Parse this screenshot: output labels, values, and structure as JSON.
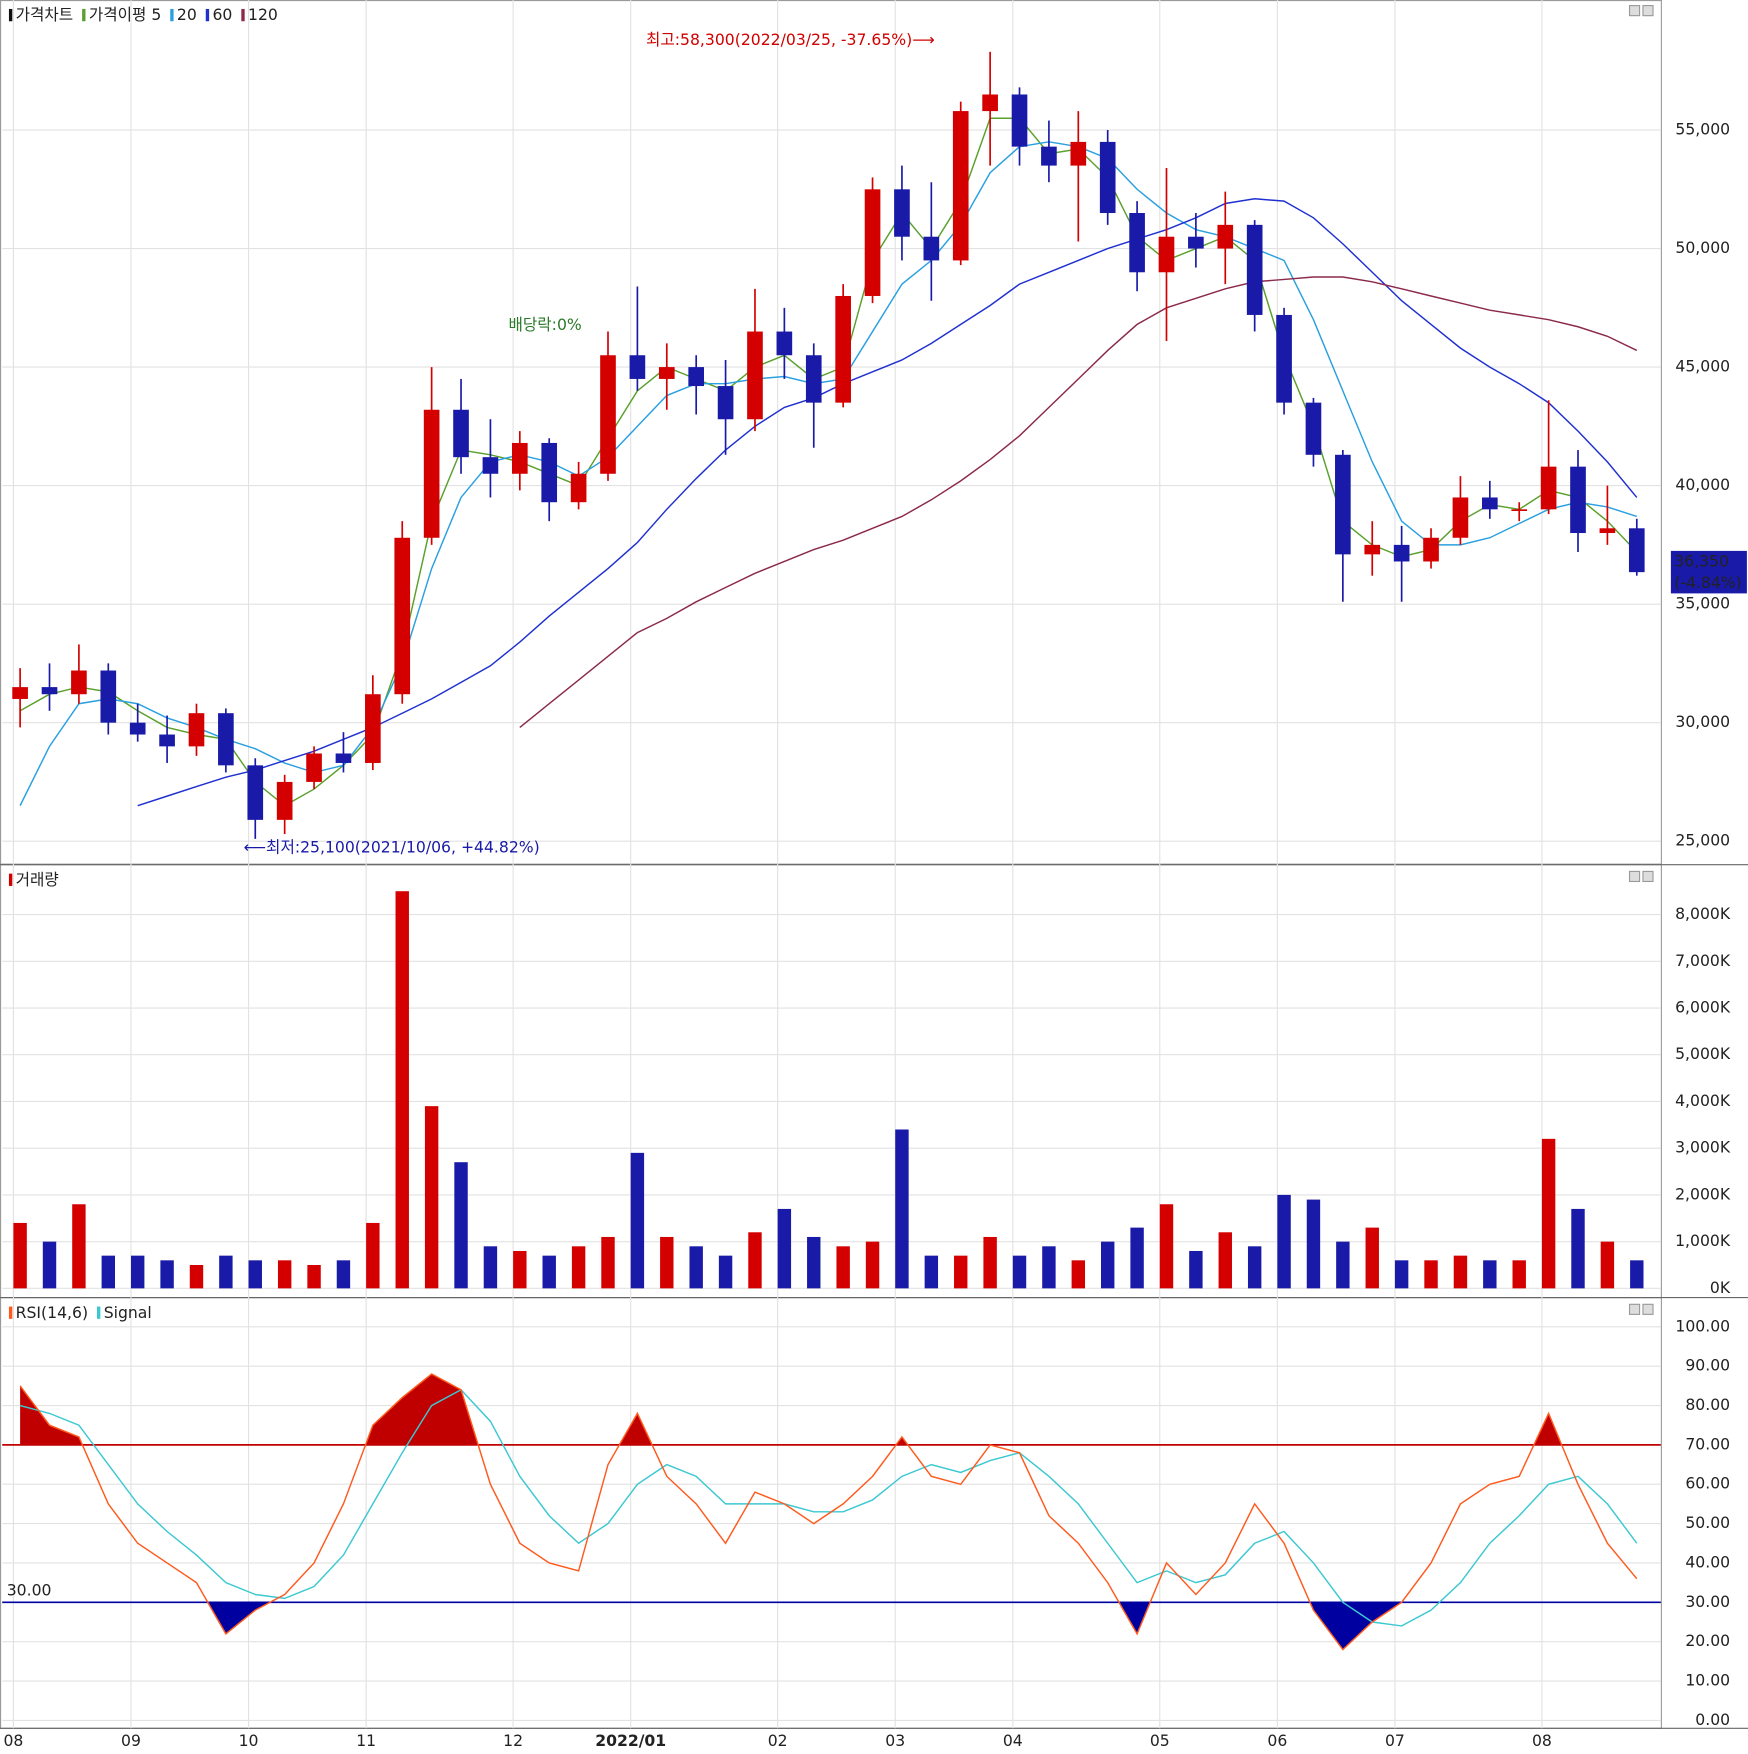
{
  "chart_data": [
    {
      "type": "candlestick",
      "categories": [
        "08",
        null,
        null,
        null,
        "09",
        null,
        null,
        null,
        "10",
        null,
        null,
        null,
        "11",
        null,
        null,
        null,
        null,
        "12",
        null,
        null,
        null,
        "2022/01",
        null,
        null,
        null,
        null,
        "02",
        null,
        null,
        null,
        "03",
        null,
        null,
        null,
        "04",
        null,
        null,
        null,
        null,
        "05",
        null,
        null,
        null,
        "06",
        null,
        null,
        null,
        "07",
        null,
        null,
        null,
        null,
        "08",
        null,
        null,
        null
      ],
      "series": [
        {
          "name": "가격차트",
          "up_color": "#d40000",
          "down_color": "#1a1aa8",
          "open": [
            31000,
            31500,
            31200,
            32200,
            30000,
            29500,
            29000,
            30400,
            28200,
            25900,
            27500,
            28700,
            28300,
            31200,
            37800,
            43200,
            41200,
            40500,
            41800,
            39300,
            40500,
            45500,
            44500,
            45000,
            44200,
            42800,
            46500,
            45500,
            43500,
            48000,
            52500,
            50500,
            49500,
            55800,
            56500,
            54300,
            53500,
            54500,
            51500,
            49000,
            50500,
            50000,
            51000,
            47200,
            43500,
            41300,
            37100,
            37500,
            36800,
            37800,
            39500,
            39000,
            39000,
            40800,
            38000,
            38200
          ],
          "high": [
            32300,
            32500,
            33300,
            32500,
            30800,
            30300,
            30800,
            30600,
            28500,
            27800,
            29000,
            29600,
            32000,
            38500,
            45000,
            44500,
            42800,
            42300,
            42000,
            41000,
            46500,
            48400,
            46000,
            45500,
            45300,
            48300,
            47500,
            46000,
            48500,
            53000,
            53500,
            52800,
            56200,
            58300,
            56800,
            55400,
            55800,
            55000,
            52000,
            53400,
            51500,
            52400,
            51200,
            47500,
            43700,
            41500,
            38500,
            38300,
            38200,
            40400,
            40200,
            39300,
            43600,
            41500,
            40000,
            38600
          ],
          "low": [
            29800,
            30500,
            30800,
            29500,
            29200,
            28300,
            28600,
            27900,
            25100,
            25300,
            27200,
            27900,
            28000,
            30800,
            37500,
            40500,
            39500,
            39800,
            38500,
            39000,
            40200,
            44000,
            43200,
            43000,
            41300,
            42300,
            44500,
            41600,
            43300,
            47700,
            49500,
            47800,
            49300,
            53500,
            53500,
            52800,
            50300,
            51000,
            48200,
            46100,
            49200,
            48500,
            46500,
            43000,
            40800,
            35100,
            36200,
            35100,
            36500,
            37500,
            38600,
            38500,
            38800,
            37200,
            37500,
            36200
          ],
          "close": [
            31500,
            31200,
            32200,
            30000,
            29500,
            29000,
            30400,
            28200,
            25900,
            27500,
            28700,
            28300,
            31200,
            37800,
            43200,
            41200,
            40500,
            41800,
            39300,
            40500,
            45500,
            44500,
            45000,
            44200,
            42800,
            46500,
            45500,
            43500,
            48000,
            52500,
            50500,
            49500,
            55800,
            56500,
            54300,
            53500,
            54500,
            51500,
            49000,
            50500,
            50000,
            51000,
            47200,
            43500,
            41300,
            37100,
            37500,
            36800,
            37800,
            39500,
            39000,
            39000,
            40800,
            38000,
            38200,
            36350
          ]
        }
      ],
      "lines": [
        {
          "name": "가격이평 5",
          "color": "#5aa02c",
          "values": [
            30500,
            31200,
            31500,
            31300,
            30500,
            29800,
            29500,
            29300,
            27500,
            26500,
            27200,
            28200,
            29500,
            33000,
            38500,
            41500,
            41300,
            41000,
            40500,
            40000,
            42000,
            44000,
            45000,
            44500,
            44000,
            45000,
            45500,
            44500,
            45000,
            49500,
            51500,
            50000,
            52000,
            55500,
            55500,
            54000,
            54200,
            53000,
            50500,
            49500,
            50000,
            50500,
            49500,
            45500,
            42500,
            38500,
            37500,
            37000,
            37300,
            38500,
            39200,
            39000,
            39800,
            39500,
            38500,
            37200
          ]
        },
        {
          "name": "20",
          "color": "#2aa0e0",
          "values": [
            26500,
            29000,
            30800,
            31000,
            30800,
            30200,
            29800,
            29300,
            28900,
            28300,
            27900,
            28200,
            29800,
            32500,
            36500,
            39500,
            41000,
            41300,
            41000,
            40400,
            41200,
            42500,
            43800,
            44300,
            44300,
            44500,
            44600,
            44300,
            44500,
            46500,
            48500,
            49500,
            51000,
            53200,
            54300,
            54500,
            54300,
            53800,
            52500,
            51500,
            50800,
            50500,
            50000,
            49500,
            47000,
            44000,
            41000,
            38500,
            37500,
            37500,
            37800,
            38400,
            39000,
            39300,
            39100,
            38700
          ]
        },
        {
          "name": "60",
          "color": "#2030d0",
          "values": [
            null,
            null,
            null,
            null,
            26500,
            26900,
            27300,
            27700,
            28000,
            28400,
            28800,
            29300,
            29800,
            30400,
            31000,
            31700,
            32400,
            33400,
            34500,
            35500,
            36500,
            37600,
            39000,
            40300,
            41500,
            42500,
            43300,
            43700,
            44300,
            44800,
            45300,
            46000,
            46800,
            47600,
            48500,
            49000,
            49500,
            50000,
            50400,
            50800,
            51300,
            51900,
            52100,
            52000,
            51300,
            50200,
            49000,
            47800,
            46800,
            45800,
            45000,
            44300,
            43500,
            42300,
            41000,
            39500
          ]
        },
        {
          "name": "120",
          "color": "#8b2a4a",
          "values": [
            null,
            null,
            null,
            null,
            null,
            null,
            null,
            null,
            null,
            null,
            null,
            null,
            null,
            null,
            null,
            null,
            null,
            29800,
            30800,
            31800,
            32800,
            33800,
            34400,
            35100,
            35700,
            36300,
            36800,
            37300,
            37700,
            38200,
            38700,
            39400,
            40200,
            41100,
            42100,
            43300,
            44500,
            45700,
            46800,
            47500,
            47900,
            48300,
            48600,
            48700,
            48800,
            48800,
            48600,
            48300,
            48000,
            47700,
            47400,
            47200,
            47000,
            46700,
            46300,
            45700
          ]
        }
      ],
      "ylim": [
        24150,
        60250
      ],
      "yticks": [
        {
          "value": 25000,
          "label": "25,000"
        },
        {
          "value": 30000,
          "label": "30,000"
        },
        {
          "value": 35000,
          "label": "35,000"
        },
        {
          "value": 40000,
          "label": "40,000"
        },
        {
          "value": 45000,
          "label": "45,000"
        },
        {
          "value": 50000,
          "label": "50,000"
        },
        {
          "value": 55000,
          "label": "55,000"
        }
      ],
      "grid": true,
      "annotations": {
        "high": "최고:58,300(2022/03/25, -37.65%)⟶",
        "low": "⟵최저:25,100(2021/10/06, +44.82%)",
        "dividend": "배당락:0%"
      },
      "last_price": {
        "value": 36350,
        "label": "36,350",
        "change": "(-4.84%)",
        "color": "#1a1aa8"
      }
    },
    {
      "type": "bar",
      "series": [
        {
          "name": "거래량",
          "color": "#d40000",
          "values": [
            1400,
            1000,
            1800,
            700,
            700,
            600,
            500,
            700,
            600,
            600,
            500,
            600,
            1400,
            8500,
            3900,
            2700,
            900,
            800,
            700,
            900,
            1100,
            2900,
            1100,
            900,
            700,
            1200,
            1700,
            1100,
            900,
            1000,
            3400,
            700,
            700,
            1100,
            700,
            900,
            600,
            1000,
            1300,
            1800,
            800,
            1200,
            900,
            2000,
            1900,
            1000,
            1300,
            600,
            600,
            700,
            600,
            600,
            3200,
            1700,
            1000,
            600
          ]
        }
      ],
      "ylim": [
        -150,
        8900
      ],
      "yticks": [
        {
          "value": 0,
          "label": "0K"
        },
        {
          "value": 1000,
          "label": "1,000K"
        },
        {
          "value": 2000,
          "label": "2,000K"
        },
        {
          "value": 3000,
          "label": "3,000K"
        },
        {
          "value": 4000,
          "label": "4,000K"
        },
        {
          "value": 5000,
          "label": "5,000K"
        },
        {
          "value": 6000,
          "label": "6,000K"
        },
        {
          "value": 7000,
          "label": "7,000K"
        },
        {
          "value": 8000,
          "label": "8,000K"
        }
      ],
      "grid": true
    },
    {
      "type": "line",
      "series": [
        {
          "name": "RSI(14,6)",
          "color": "#ff5a1e",
          "values": [
            85,
            75,
            72,
            55,
            45,
            40,
            35,
            22,
            28,
            32,
            40,
            55,
            75,
            82,
            88,
            84,
            60,
            45,
            40,
            38,
            65,
            78,
            62,
            55,
            45,
            58,
            55,
            50,
            55,
            62,
            72,
            62,
            60,
            70,
            68,
            52,
            45,
            35,
            22,
            40,
            32,
            40,
            55,
            45,
            28,
            18,
            25,
            30,
            40,
            55,
            60,
            62,
            78,
            60,
            45,
            36
          ]
        },
        {
          "name": "Signal",
          "color": "#3cc8d2",
          "values": [
            80,
            78,
            75,
            65,
            55,
            48,
            42,
            35,
            32,
            31,
            34,
            42,
            55,
            68,
            80,
            84,
            76,
            62,
            52,
            45,
            50,
            60,
            65,
            62,
            55,
            55,
            55,
            53,
            53,
            56,
            62,
            65,
            63,
            66,
            68,
            62,
            55,
            45,
            35,
            38,
            35,
            37,
            45,
            48,
            40,
            30,
            25,
            24,
            28,
            35,
            45,
            52,
            60,
            62,
            55,
            45
          ]
        }
      ],
      "ylim": [
        -2,
        106
      ],
      "yticks": [
        {
          "value": 0,
          "label": "0.00"
        },
        {
          "value": 10,
          "label": "10.00"
        },
        {
          "value": 20,
          "label": "20.00"
        },
        {
          "value": 30,
          "label": "30.00"
        },
        {
          "value": 40,
          "label": "40.00"
        },
        {
          "value": 50,
          "label": "50.00"
        },
        {
          "value": 60,
          "label": "60.00"
        },
        {
          "value": 70,
          "label": "70.00"
        },
        {
          "value": 80,
          "label": "80.00"
        },
        {
          "value": 90,
          "label": "90.00"
        },
        {
          "value": 100,
          "label": "100.00"
        }
      ],
      "upper": {
        "value": 70,
        "color": "#c00000"
      },
      "lower": {
        "value": 30,
        "label": "30.00",
        "color": "#0000a0"
      },
      "grid": true
    }
  ]
}
